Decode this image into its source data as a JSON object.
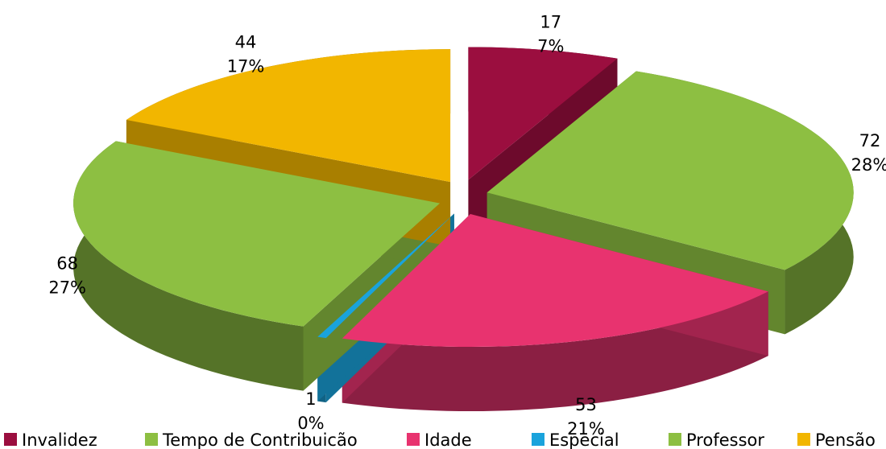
{
  "chart_data": {
    "type": "pie3d",
    "categories": [
      "Invalidez",
      "Tempo de Contribuicão",
      "Idade",
      "Especial",
      "Professor",
      "Pensão"
    ],
    "values": [
      17,
      72,
      53,
      1,
      68,
      44
    ],
    "percent_labels": [
      "7%",
      "28%",
      "21%",
      "0%",
      "27%",
      "17%"
    ],
    "colors": [
      "#9b0e3f",
      "#8dbf42",
      "#e8336f",
      "#1aa3dc",
      "#8dbf42",
      "#f2b600"
    ],
    "legend": "bottom"
  }
}
